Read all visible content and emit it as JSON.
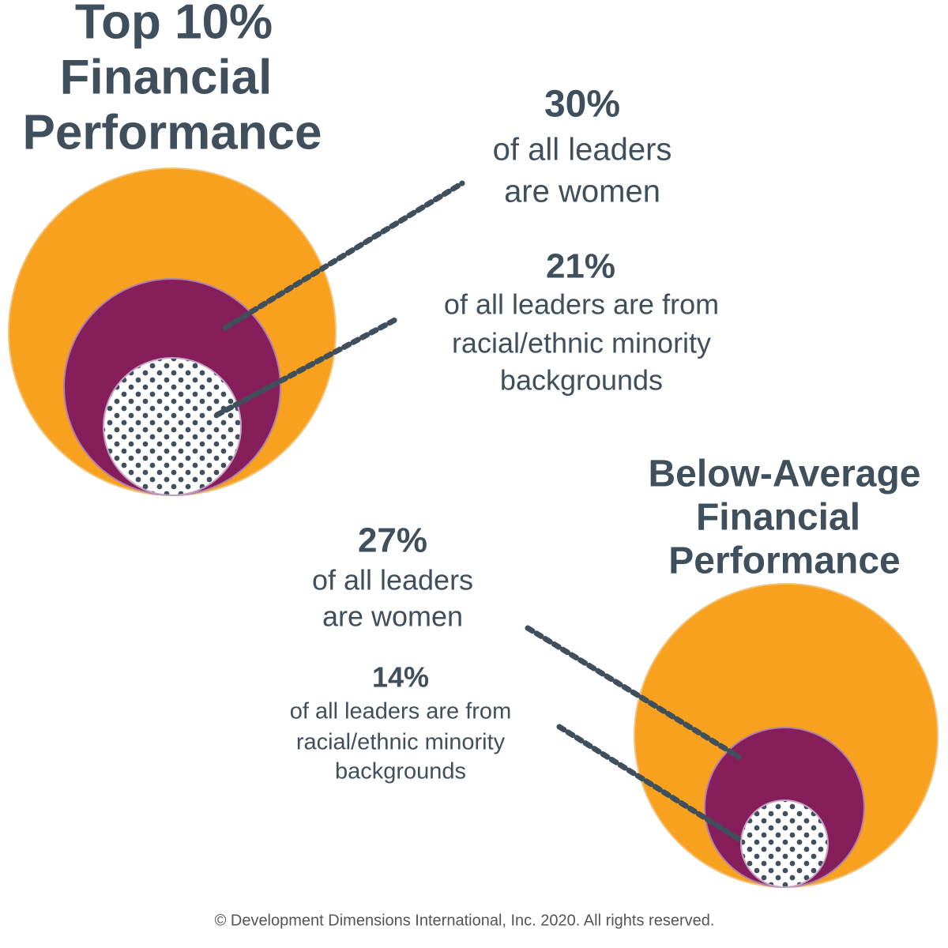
{
  "panels": [
    {
      "title": [
        "Top 10%",
        "Financial",
        "Performance"
      ],
      "stats": [
        {
          "value": "30%",
          "lines": [
            "of all leaders",
            "are women"
          ]
        },
        {
          "value": "21%",
          "lines": [
            "of all leaders are from",
            "racial/ethnic minority",
            "backgrounds"
          ]
        }
      ]
    },
    {
      "title": [
        "Below-Average",
        "Financial",
        "Performance"
      ],
      "stats": [
        {
          "value": "27%",
          "lines": [
            "of all leaders",
            "are women"
          ]
        },
        {
          "value": "14%",
          "lines": [
            "of all leaders are from",
            "racial/ethnic minority",
            "backgrounds"
          ]
        }
      ]
    }
  ],
  "footer": "© Development Dimensions International, Inc. 2020. All rights reserved."
}
